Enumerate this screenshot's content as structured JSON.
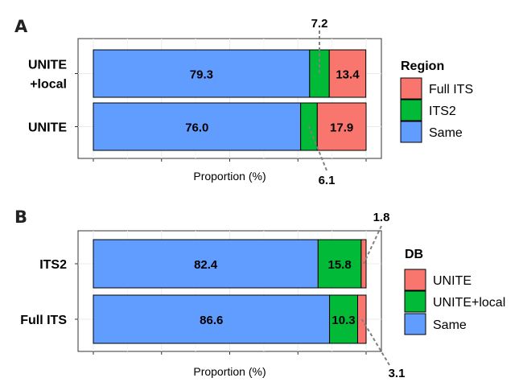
{
  "chart_data": [
    {
      "panel": "A",
      "type": "bar",
      "orientation": "horizontal",
      "stacked": true,
      "categories": [
        "UNITE\n+local",
        "UNITE"
      ],
      "series": [
        {
          "name": "Same",
          "color": "#619CFF",
          "values": [
            79.3,
            76.0
          ]
        },
        {
          "name": "ITS2",
          "color": "#00BA38",
          "values": [
            7.2,
            6.1
          ]
        },
        {
          "name": "Full ITS",
          "color": "#F8766D",
          "values": [
            13.4,
            17.9
          ]
        }
      ],
      "xlabel": "Proportion (%)",
      "xlim": [
        0,
        100
      ],
      "legend_title": "Region",
      "legend_order": [
        "Full ITS",
        "ITS2",
        "Same"
      ],
      "legend_position": "right",
      "callouts": [
        {
          "label": "7.2",
          "category_index": 0,
          "series": "ITS2",
          "position": "above"
        },
        {
          "label": "6.1",
          "category_index": 1,
          "series": "ITS2",
          "position": "below"
        }
      ]
    },
    {
      "panel": "B",
      "type": "bar",
      "orientation": "horizontal",
      "stacked": true,
      "categories": [
        "ITS2",
        "Full ITS"
      ],
      "series": [
        {
          "name": "Same",
          "color": "#619CFF",
          "values": [
            82.4,
            86.6
          ]
        },
        {
          "name": "UNITE+local",
          "color": "#00BA38",
          "values": [
            15.8,
            10.3
          ]
        },
        {
          "name": "UNITE",
          "color": "#F8766D",
          "values": [
            1.8,
            3.1
          ]
        }
      ],
      "xlabel": "Proportion (%)",
      "xlim": [
        0,
        100
      ],
      "legend_title": "DB",
      "legend_order": [
        "UNITE",
        "UNITE+local",
        "Same"
      ],
      "legend_position": "right",
      "callouts": [
        {
          "label": "1.8",
          "category_index": 0,
          "series": "UNITE",
          "position": "above"
        },
        {
          "label": "3.1",
          "category_index": 1,
          "series": "UNITE",
          "position": "below"
        }
      ]
    }
  ]
}
